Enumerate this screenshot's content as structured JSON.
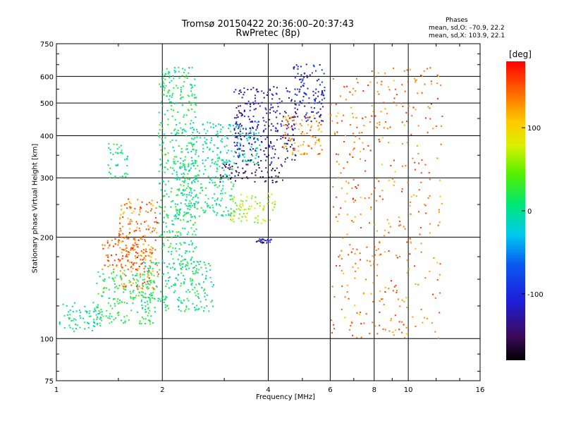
{
  "header": {
    "title": "Tromsø 20150422 20:36:00–20:37:43",
    "subtitle": "RwPretec (8p)",
    "stats_title": "Phases",
    "stats_o": "mean, sd,O: –70.9, 22.2",
    "stats_x": "mean, sd,X: 103.9, 22.1"
  },
  "colorbar": {
    "unit": "[deg]",
    "ticks": [
      "100",
      "0",
      "-100"
    ],
    "range": [
      -180,
      180
    ]
  },
  "chart_data": {
    "type": "scatter",
    "title": "Tromsø 20150422 20:36:00–20:37:43",
    "subtitle": "RwPretec (8p)",
    "xlabel": "Frequency [MHz]",
    "ylabel": "Stationary phase Virtual Height [km]",
    "xscale": "log",
    "yscale": "log",
    "xlim": [
      1,
      16
    ],
    "ylim": [
      75,
      750
    ],
    "xticks": [
      "1",
      "2",
      "4",
      "6",
      "8",
      "10",
      "16"
    ],
    "yticks": [
      "75",
      "100",
      "200",
      "300",
      "400",
      "500",
      "600",
      "750"
    ],
    "grid": true,
    "color_by": "phase (deg)",
    "clusters": [
      {
        "freq_mhz": [
          1.02,
          1.35
        ],
        "height_km": [
          105,
          128
        ],
        "phase_deg": -5
      },
      {
        "freq_mhz": [
          1.3,
          1.9
        ],
        "height_km": [
          110,
          160
        ],
        "phase_deg": 20
      },
      {
        "freq_mhz": [
          1.5,
          1.95
        ],
        "height_km": [
          140,
          260
        ],
        "phase_deg": 140
      },
      {
        "freq_mhz": [
          1.35,
          1.8
        ],
        "height_km": [
          160,
          200
        ],
        "phase_deg": 150
      },
      {
        "freq_mhz": [
          1.4,
          1.6
        ],
        "height_km": [
          300,
          380
        ],
        "phase_deg": 5
      },
      {
        "freq_mhz": [
          1.75,
          2.8
        ],
        "height_km": [
          120,
          170
        ],
        "phase_deg": 5
      },
      {
        "freq_mhz": [
          1.95,
          2.5
        ],
        "height_km": [
          160,
          640
        ],
        "phase_deg": 10
      },
      {
        "freq_mhz": [
          2.2,
          3.2
        ],
        "height_km": [
          230,
          340
        ],
        "phase_deg": 0
      },
      {
        "freq_mhz": [
          2.4,
          3.8
        ],
        "height_km": [
          330,
          440
        ],
        "phase_deg": -10
      },
      {
        "freq_mhz": [
          2.9,
          4.4
        ],
        "height_km": [
          290,
          330
        ],
        "phase_deg": -150
      },
      {
        "freq_mhz": [
          3.2,
          4.8
        ],
        "height_km": [
          330,
          560
        ],
        "phase_deg": -120
      },
      {
        "freq_mhz": [
          4.4,
          5.7
        ],
        "height_km": [
          350,
          460
        ],
        "phase_deg": 130
      },
      {
        "freq_mhz": [
          4.7,
          5.8
        ],
        "height_km": [
          440,
          660
        ],
        "phase_deg": -110
      },
      {
        "freq_mhz": [
          3.1,
          4.2
        ],
        "height_km": [
          220,
          270
        ],
        "phase_deg": 70
      },
      {
        "freq_mhz": [
          3.7,
          4.1
        ],
        "height_km": [
          192,
          198
        ],
        "phase_deg": -115
      },
      {
        "freq_mhz": [
          6.0,
          12.5
        ],
        "height_km": [
          100,
          640
        ],
        "phase_deg": 140
      }
    ]
  }
}
